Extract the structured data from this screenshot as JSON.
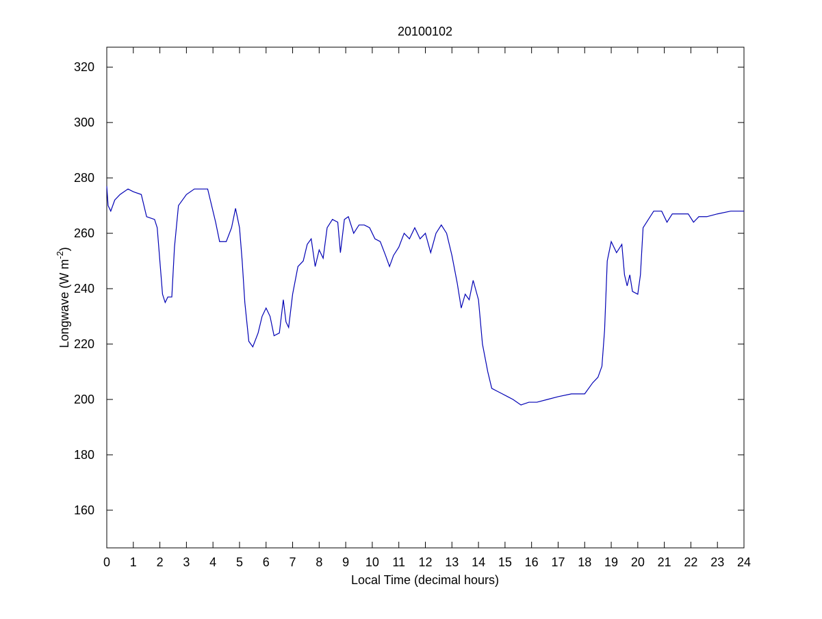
{
  "chart_data": {
    "type": "line",
    "title": "20100102",
    "xlabel": "Local Time (decimal hours)",
    "ylabel": [
      "Longwave (W m",
      "-2",
      ")"
    ],
    "xlim": [
      0,
      24
    ],
    "ylim": [
      146.4,
      327.2
    ],
    "xticks": [
      0,
      1,
      2,
      3,
      4,
      5,
      6,
      7,
      8,
      9,
      10,
      11,
      12,
      13,
      14,
      15,
      16,
      17,
      18,
      19,
      20,
      21,
      22,
      23,
      24
    ],
    "yticks": [
      160,
      180,
      200,
      220,
      240,
      260,
      280,
      300,
      320
    ],
    "x": [
      0,
      0.05,
      0.15,
      0.3,
      0.5,
      0.8,
      1.0,
      1.3,
      1.5,
      1.8,
      1.9,
      2.0,
      2.1,
      2.2,
      2.3,
      2.45,
      2.55,
      2.7,
      3.0,
      3.3,
      3.6,
      3.8,
      3.9,
      4.1,
      4.25,
      4.5,
      4.7,
      4.85,
      5.0,
      5.1,
      5.2,
      5.35,
      5.5,
      5.7,
      5.85,
      6.0,
      6.15,
      6.3,
      6.5,
      6.65,
      6.75,
      6.85,
      7.0,
      7.2,
      7.4,
      7.55,
      7.7,
      7.85,
      8.0,
      8.15,
      8.3,
      8.5,
      8.7,
      8.8,
      8.95,
      9.1,
      9.3,
      9.5,
      9.7,
      9.9,
      10.1,
      10.3,
      10.5,
      10.65,
      10.8,
      11.0,
      11.2,
      11.4,
      11.6,
      11.8,
      12.0,
      12.2,
      12.4,
      12.6,
      12.8,
      13.0,
      13.2,
      13.35,
      13.5,
      13.65,
      13.8,
      14.0,
      14.15,
      14.35,
      14.5,
      14.7,
      14.9,
      15.1,
      15.3,
      15.6,
      15.9,
      16.2,
      16.6,
      17.0,
      17.5,
      18.0,
      18.3,
      18.5,
      18.65,
      18.75,
      18.85,
      19.0,
      19.2,
      19.4,
      19.5,
      19.6,
      19.7,
      19.8,
      20.0,
      20.1,
      20.2,
      20.4,
      20.6,
      20.9,
      21.1,
      21.3,
      21.6,
      21.9,
      22.1,
      22.3,
      22.6,
      23.0,
      23.5,
      24.0
    ],
    "series": [
      {
        "color": "#0000b4",
        "values": [
          277,
          270,
          268,
          272,
          274,
          276,
          275,
          274,
          266,
          265,
          262,
          250,
          238,
          235,
          237,
          237,
          255,
          270,
          274,
          276,
          276,
          276,
          272,
          264,
          257,
          257,
          262,
          269,
          262,
          250,
          235,
          221,
          219,
          224,
          230,
          233,
          230,
          223,
          224,
          236,
          228,
          226,
          238,
          248,
          250,
          256,
          258,
          248,
          254,
          251,
          262,
          265,
          264,
          253,
          265,
          266,
          260,
          263,
          263,
          262,
          258,
          257,
          252,
          248,
          252,
          255,
          260,
          258,
          262,
          258,
          260,
          253,
          260,
          263,
          260,
          252,
          242,
          233,
          238,
          236,
          243,
          236,
          220,
          210,
          204,
          203,
          202,
          201,
          200,
          198,
          199,
          199,
          200,
          201,
          202,
          202,
          206,
          208,
          212,
          225,
          250,
          257,
          253,
          256,
          245,
          241,
          245,
          239,
          238,
          245,
          262,
          265,
          268,
          268,
          264,
          267,
          267,
          267,
          264,
          266,
          266,
          267,
          268,
          268
        ]
      }
    ]
  }
}
